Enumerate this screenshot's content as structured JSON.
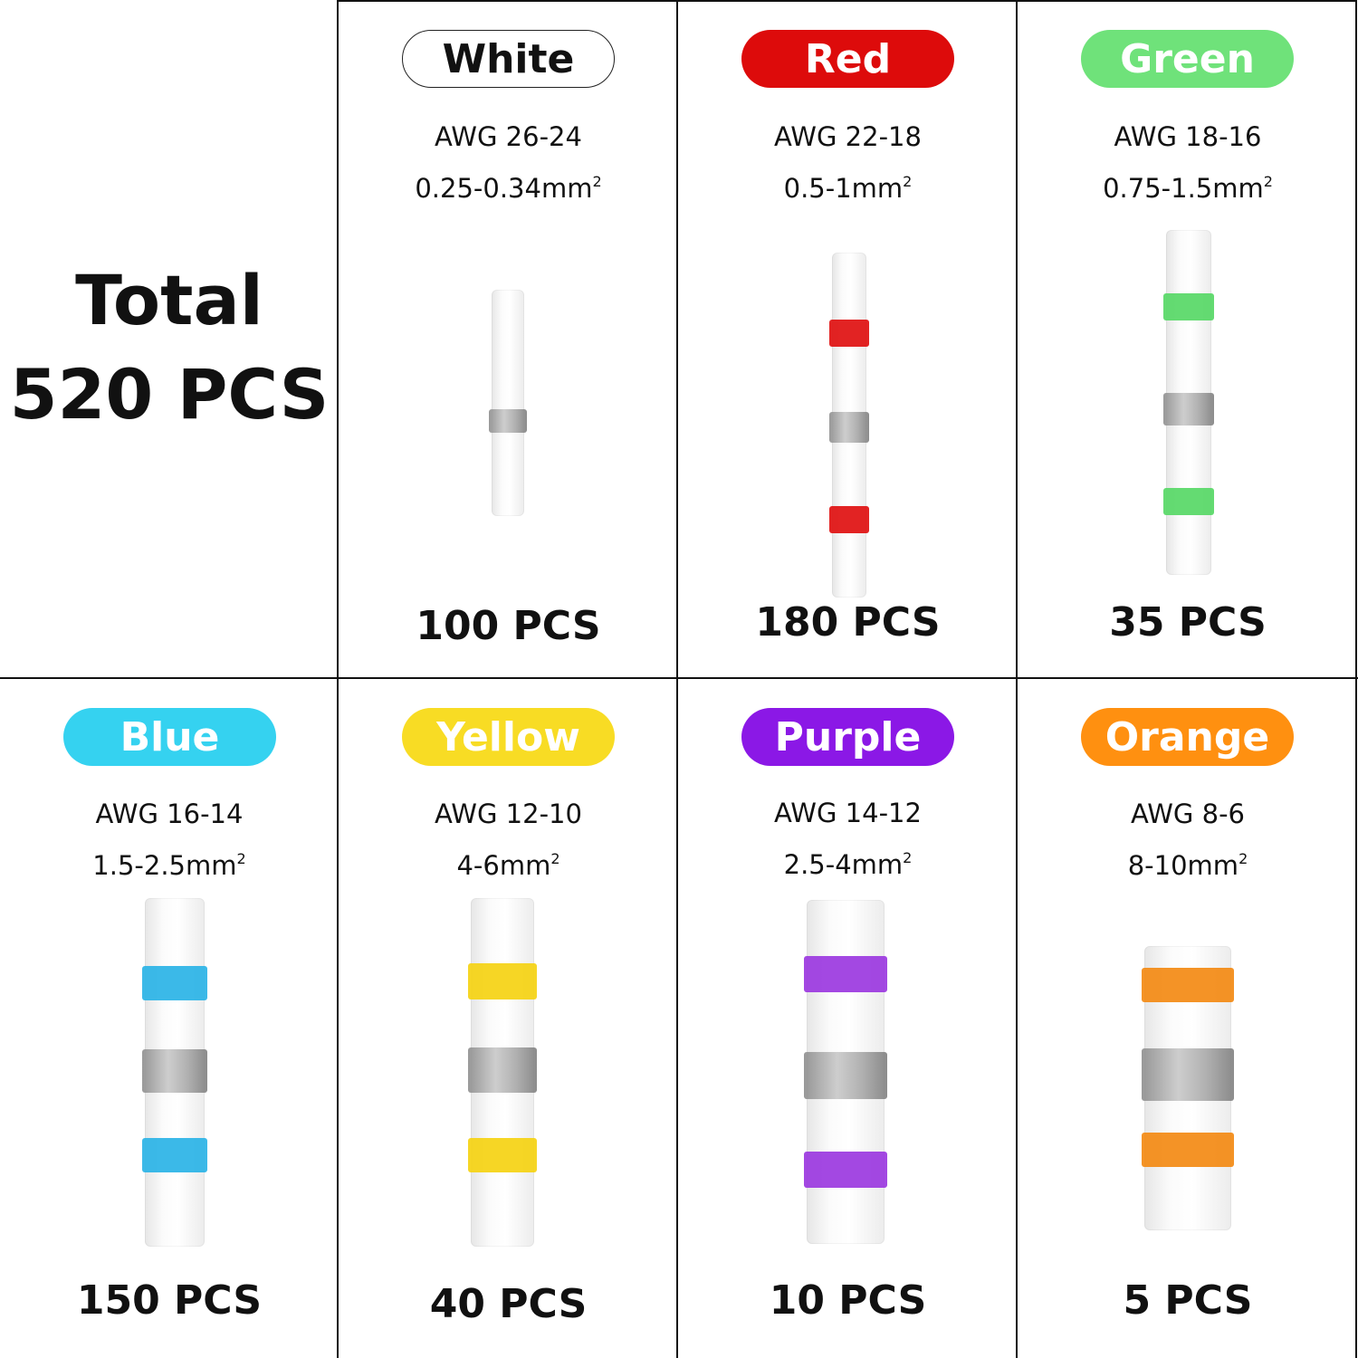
{
  "total": {
    "line1": "Total",
    "line2": "520 PCS"
  },
  "items": [
    {
      "color_name": "White",
      "pill_color": "#ffffff",
      "awg": "AWG 26-24",
      "mm2": "0.25-0.34mm",
      "count": "100 PCS",
      "band_color": "#ffffff"
    },
    {
      "color_name": "Red",
      "pill_color": "#dd0b0b",
      "awg": "AWG 22-18",
      "mm2": "0.5-1mm",
      "count": "180 PCS",
      "band_color": "#e01010"
    },
    {
      "color_name": "Green",
      "pill_color": "#6fe27a",
      "awg": "AWG 18-16",
      "mm2": "0.75-1.5mm",
      "count": "35 PCS",
      "band_color": "#57d866"
    },
    {
      "color_name": "Blue",
      "pill_color": "#35d2f0",
      "awg": "AWG 16-14",
      "mm2": "1.5-2.5mm",
      "count": "150 PCS",
      "band_color": "#2ab3e6"
    },
    {
      "color_name": "Yellow",
      "pill_color": "#f8dc24",
      "awg": "AWG 12-10",
      "mm2": "4-6mm",
      "count": "40 PCS",
      "band_color": "#f5d312"
    },
    {
      "color_name": "Purple",
      "pill_color": "#8b18e6",
      "awg": "AWG 14-12",
      "mm2": "2.5-4mm",
      "count": "10 PCS",
      "band_color": "#9b38e0"
    },
    {
      "color_name": "Orange",
      "pill_color": "#ff9010",
      "awg": "AWG 8-6",
      "mm2": "8-10mm",
      "count": "5 PCS",
      "band_color": "#f38a14"
    }
  ],
  "superscript": "2"
}
